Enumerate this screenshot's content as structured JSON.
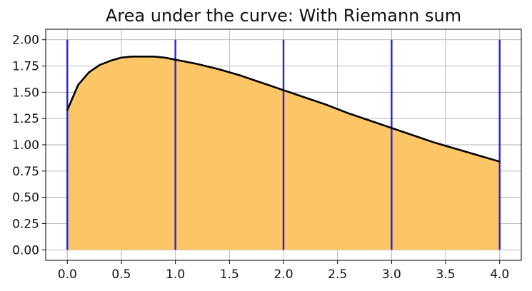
{
  "chart_data": {
    "type": "area",
    "title": "Area under the curve: With Riemann sum",
    "xlabel": "",
    "ylabel": "",
    "xlim": [
      -0.2,
      4.2
    ],
    "ylim": [
      -0.1,
      2.1
    ],
    "grid": true,
    "x_ticks": [
      0,
      0.5,
      1,
      1.5,
      2,
      2.5,
      3,
      3.5,
      4
    ],
    "x_tick_labels": [
      "0.0",
      "0.5",
      "1.0",
      "1.5",
      "2.0",
      "2.5",
      "3.0",
      "3.5",
      "4.0"
    ],
    "y_ticks": [
      0,
      0.25,
      0.5,
      0.75,
      1,
      1.25,
      1.5,
      1.75,
      2
    ],
    "y_tick_labels": [
      "0.00",
      "0.25",
      "0.50",
      "0.75",
      "1.00",
      "1.25",
      "1.50",
      "1.75",
      "2.00"
    ],
    "curve": {
      "x": [
        0,
        0.1,
        0.2,
        0.3,
        0.4,
        0.5,
        0.6,
        0.7,
        0.8,
        0.9,
        1.0,
        1.2,
        1.4,
        1.6,
        1.8,
        2.0,
        2.2,
        2.4,
        2.6,
        2.8,
        3.0,
        3.2,
        3.4,
        3.6,
        3.8,
        4.0
      ],
      "y": [
        1.33,
        1.57,
        1.69,
        1.76,
        1.8,
        1.83,
        1.84,
        1.84,
        1.84,
        1.83,
        1.81,
        1.77,
        1.72,
        1.66,
        1.59,
        1.52,
        1.45,
        1.38,
        1.3,
        1.23,
        1.16,
        1.09,
        1.02,
        0.96,
        0.9,
        0.84
      ],
      "color": "#000000"
    },
    "fill_color": "#fcc566",
    "riemann_lines": {
      "x": [
        0,
        1,
        2,
        3,
        4
      ],
      "y_top": 2.0,
      "color": "#2222ee"
    }
  }
}
